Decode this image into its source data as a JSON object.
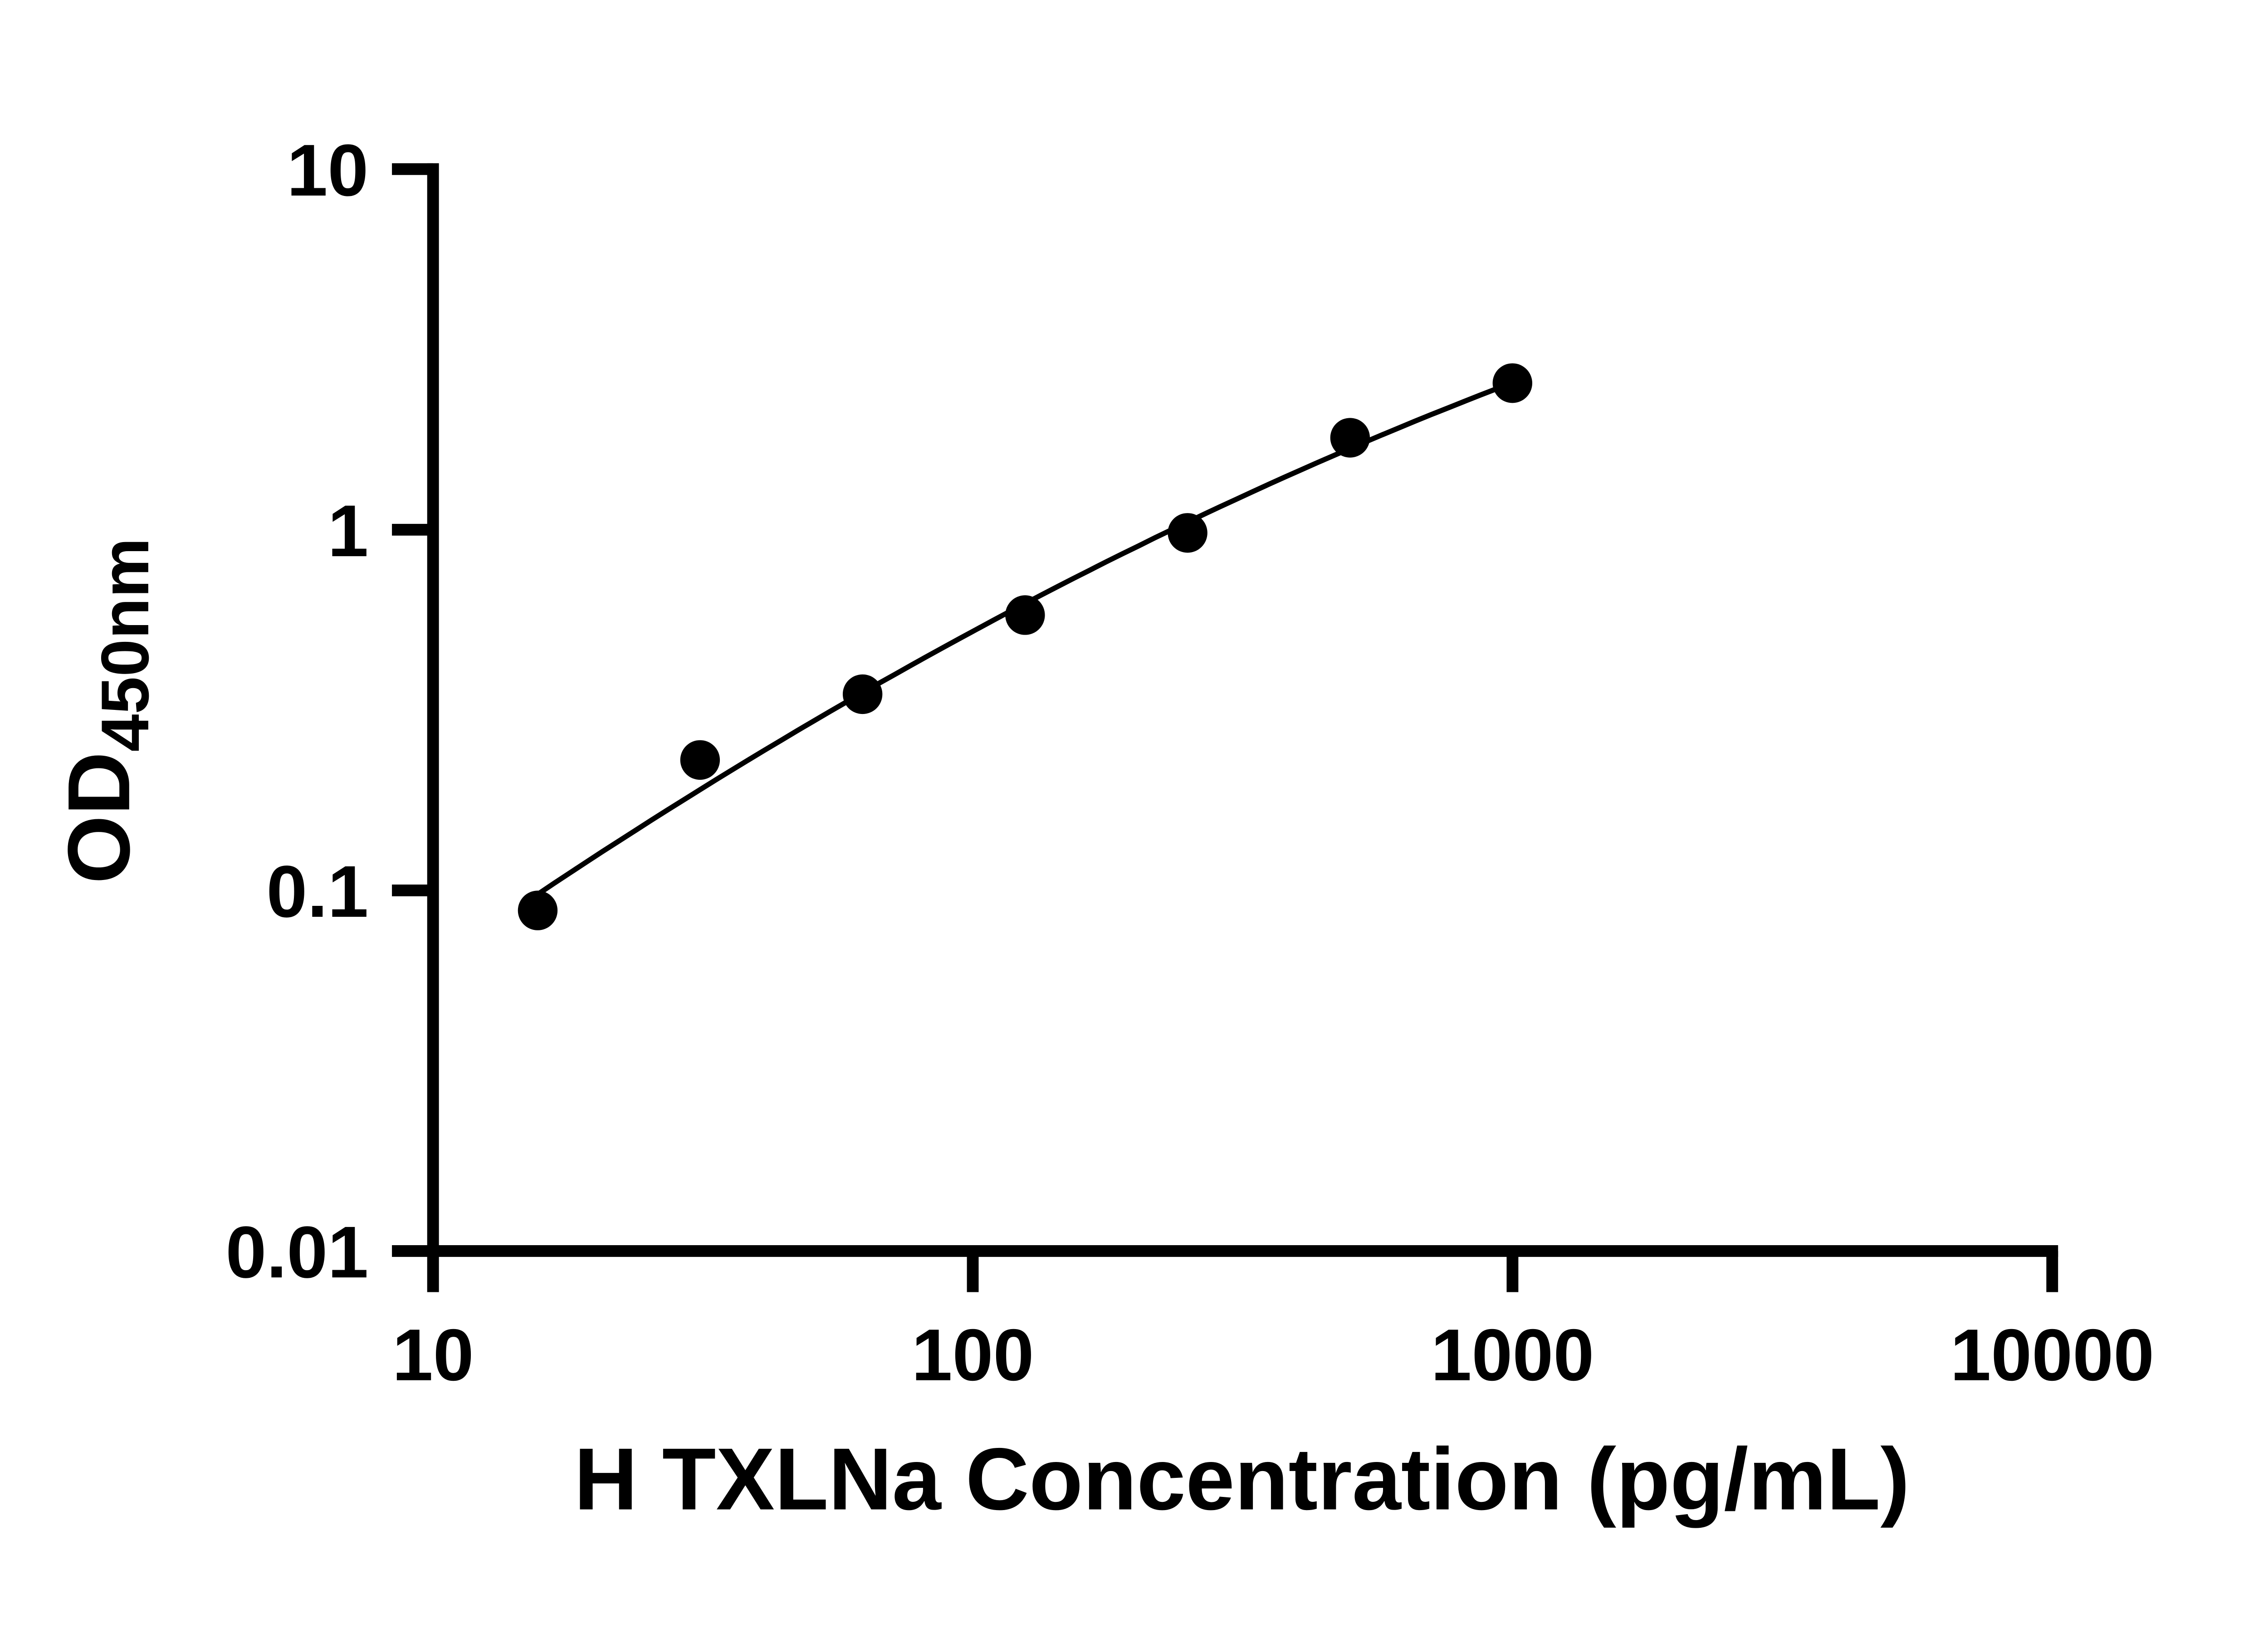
{
  "page": {
    "background": "#ffffff"
  },
  "chart_data": {
    "type": "scatter",
    "title": "",
    "xlabel": "H TXLNa Concentration (pg/mL)",
    "ylabel": "OD450nm",
    "ylabel_main": "OD",
    "ylabel_sub": "450nm",
    "xscale": "log",
    "yscale": "log",
    "xlim": [
      10,
      10000
    ],
    "ylim": [
      0.01,
      10
    ],
    "x": [
      15.625,
      31.25,
      62.5,
      125,
      250,
      500,
      1000
    ],
    "y": [
      0.088,
      0.23,
      0.35,
      0.58,
      0.98,
      1.8,
      2.55
    ],
    "x_tick_values": [
      10,
      100,
      1000,
      10000
    ],
    "x_ticks": [
      "10",
      "100",
      "1000",
      "10000"
    ],
    "y_tick_values": [
      10,
      1,
      0.1,
      0.01
    ],
    "y_ticks": [
      "10",
      "1",
      "0.1",
      "0.01"
    ],
    "grid": "off",
    "legend": "none",
    "fit": "smooth curve through points (4PL-style standard curve)",
    "marker_color": "#000000",
    "line_color": "#000000",
    "axis_color": "#000000"
  }
}
